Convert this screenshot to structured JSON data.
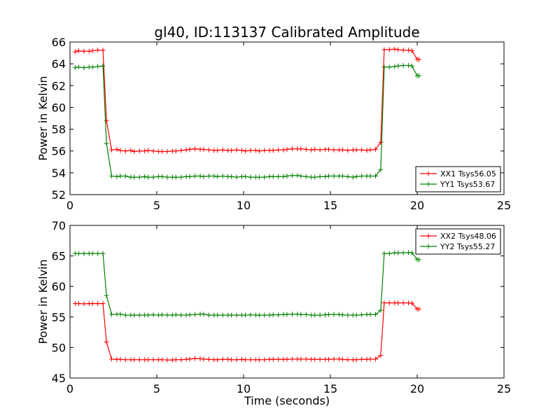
{
  "title": "gl40, ID:113137 Calibrated Amplitude",
  "chart_data": [
    {
      "type": "line",
      "ylabel": "Power in Kelvin",
      "xlabel": "",
      "xlim": [
        0,
        25
      ],
      "ylim": [
        52,
        66
      ],
      "xticks": [
        "0",
        "5",
        "10",
        "15",
        "20",
        "25"
      ],
      "yticks": [
        "52",
        "54",
        "56",
        "58",
        "60",
        "62",
        "64",
        "66"
      ],
      "legend_position": "lower-right",
      "x": [
        0.3,
        0.5,
        0.8,
        1.1,
        1.3,
        1.6,
        1.9,
        2.1,
        2.4,
        2.7,
        2.9,
        3.2,
        3.5,
        3.7,
        4.0,
        4.3,
        4.5,
        4.8,
        5.1,
        5.3,
        5.6,
        5.9,
        6.1,
        6.4,
        6.7,
        6.9,
        7.2,
        7.5,
        7.7,
        8.0,
        8.3,
        8.5,
        8.8,
        9.1,
        9.3,
        9.6,
        9.9,
        10.1,
        10.4,
        10.7,
        10.9,
        11.2,
        11.5,
        11.7,
        12.0,
        12.3,
        12.5,
        12.8,
        13.1,
        13.3,
        13.6,
        13.9,
        14.1,
        14.4,
        14.7,
        14.9,
        15.2,
        15.5,
        15.7,
        16.0,
        16.3,
        16.5,
        16.8,
        17.1,
        17.3,
        17.6,
        17.9,
        18.1,
        18.4,
        18.7,
        18.9,
        19.2,
        19.5,
        19.7,
        20.0,
        20.1
      ],
      "series": [
        {
          "name": "XX1 Tsys56.05",
          "color": "#ff0000",
          "values": [
            65.1,
            65.2,
            65.15,
            65.15,
            65.2,
            65.25,
            65.25,
            58.8,
            56.1,
            56.15,
            56.05,
            56.0,
            56.05,
            55.95,
            56.0,
            56.0,
            56.05,
            56.0,
            55.95,
            55.95,
            55.95,
            56.0,
            56.0,
            56.05,
            56.1,
            56.15,
            56.2,
            56.15,
            56.15,
            56.1,
            56.05,
            56.05,
            56.1,
            56.05,
            56.05,
            56.1,
            56.05,
            56.0,
            56.05,
            56.05,
            56.0,
            56.05,
            56.05,
            56.05,
            56.1,
            56.1,
            56.15,
            56.2,
            56.2,
            56.2,
            56.15,
            56.1,
            56.15,
            56.1,
            56.15,
            56.15,
            56.1,
            56.1,
            56.1,
            56.05,
            56.1,
            56.1,
            56.1,
            56.05,
            56.1,
            56.15,
            56.8,
            65.3,
            65.3,
            65.35,
            65.3,
            65.25,
            65.25,
            65.2,
            64.4,
            64.4
          ]
        },
        {
          "name": "YY1 Tsys53.67",
          "color": "#008000",
          "values": [
            63.65,
            63.7,
            63.65,
            63.7,
            63.7,
            63.75,
            63.8,
            56.7,
            53.7,
            53.65,
            53.7,
            53.7,
            53.6,
            53.6,
            53.6,
            53.65,
            53.6,
            53.6,
            53.65,
            53.65,
            53.6,
            53.6,
            53.6,
            53.6,
            53.65,
            53.65,
            53.7,
            53.7,
            53.65,
            53.7,
            53.7,
            53.65,
            53.7,
            53.65,
            53.65,
            53.6,
            53.65,
            53.65,
            53.6,
            53.6,
            53.6,
            53.6,
            53.65,
            53.65,
            53.65,
            53.65,
            53.7,
            53.75,
            53.75,
            53.7,
            53.65,
            53.6,
            53.6,
            53.65,
            53.65,
            53.7,
            53.7,
            53.7,
            53.7,
            53.65,
            53.6,
            53.65,
            53.7,
            53.7,
            53.7,
            53.7,
            54.3,
            63.7,
            63.7,
            63.75,
            63.8,
            63.85,
            63.85,
            63.8,
            62.9,
            62.9
          ]
        }
      ]
    },
    {
      "type": "line",
      "ylabel": "Power in Kelvin",
      "xlabel": "Time (seconds)",
      "xlim": [
        0,
        25
      ],
      "ylim": [
        45,
        70
      ],
      "xticks": [
        "0",
        "5",
        "10",
        "15",
        "20",
        "25"
      ],
      "yticks": [
        "45",
        "50",
        "55",
        "60",
        "65",
        "70"
      ],
      "legend_position": "upper-right",
      "x": [
        0.3,
        0.5,
        0.8,
        1.1,
        1.3,
        1.6,
        1.9,
        2.1,
        2.4,
        2.7,
        2.9,
        3.2,
        3.5,
        3.7,
        4.0,
        4.3,
        4.5,
        4.8,
        5.1,
        5.3,
        5.6,
        5.9,
        6.1,
        6.4,
        6.7,
        6.9,
        7.2,
        7.5,
        7.7,
        8.0,
        8.3,
        8.5,
        8.8,
        9.1,
        9.3,
        9.6,
        9.9,
        10.1,
        10.4,
        10.7,
        10.9,
        11.2,
        11.5,
        11.7,
        12.0,
        12.3,
        12.5,
        12.8,
        13.1,
        13.3,
        13.6,
        13.9,
        14.1,
        14.4,
        14.7,
        14.9,
        15.2,
        15.5,
        15.7,
        16.0,
        16.3,
        16.5,
        16.8,
        17.1,
        17.3,
        17.6,
        17.9,
        18.1,
        18.4,
        18.7,
        18.9,
        19.2,
        19.5,
        19.7,
        20.0,
        20.1
      ],
      "series": [
        {
          "name": "XX2 Tsys48.06",
          "color": "#ff0000",
          "values": [
            57.2,
            57.2,
            57.15,
            57.2,
            57.2,
            57.2,
            57.2,
            50.9,
            48.1,
            48.05,
            48.05,
            48.0,
            48.0,
            48.0,
            48.0,
            48.0,
            48.0,
            48.0,
            48.0,
            48.0,
            47.95,
            47.95,
            48.0,
            48.0,
            48.05,
            48.1,
            48.2,
            48.15,
            48.1,
            48.05,
            48.0,
            48.0,
            48.05,
            48.05,
            48.0,
            48.0,
            48.05,
            48.0,
            48.0,
            48.0,
            48.0,
            48.0,
            48.05,
            48.05,
            48.05,
            48.05,
            48.05,
            48.1,
            48.1,
            48.1,
            48.1,
            48.05,
            48.05,
            48.05,
            48.05,
            48.05,
            48.1,
            48.1,
            48.05,
            48.0,
            48.0,
            48.0,
            48.05,
            48.05,
            48.1,
            48.1,
            48.7,
            57.3,
            57.3,
            57.3,
            57.3,
            57.3,
            57.3,
            57.25,
            56.3,
            56.3
          ]
        },
        {
          "name": "YY2 Tsys55.27",
          "color": "#008000",
          "values": [
            65.4,
            65.4,
            65.4,
            65.4,
            65.4,
            65.4,
            65.4,
            58.5,
            55.4,
            55.45,
            55.45,
            55.3,
            55.3,
            55.3,
            55.3,
            55.3,
            55.3,
            55.35,
            55.3,
            55.35,
            55.3,
            55.3,
            55.35,
            55.3,
            55.3,
            55.35,
            55.4,
            55.45,
            55.45,
            55.3,
            55.3,
            55.3,
            55.3,
            55.3,
            55.3,
            55.3,
            55.3,
            55.3,
            55.35,
            55.3,
            55.3,
            55.3,
            55.3,
            55.35,
            55.35,
            55.4,
            55.4,
            55.45,
            55.45,
            55.4,
            55.4,
            55.3,
            55.3,
            55.3,
            55.35,
            55.4,
            55.4,
            55.4,
            55.35,
            55.3,
            55.3,
            55.3,
            55.35,
            55.4,
            55.4,
            55.4,
            56.1,
            65.4,
            65.4,
            65.5,
            65.5,
            65.5,
            65.55,
            65.5,
            64.4,
            64.4
          ]
        }
      ]
    }
  ]
}
